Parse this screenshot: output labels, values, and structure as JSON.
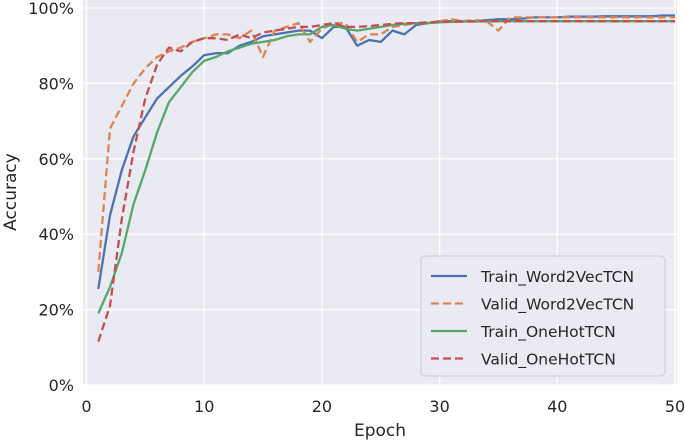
{
  "chart_data": {
    "type": "line",
    "xlabel": "Epoch",
    "ylabel": "Accuracy",
    "xlim": [
      0,
      50
    ],
    "ylim": [
      0,
      100
    ],
    "xticks": [
      0,
      10,
      20,
      30,
      40,
      50
    ],
    "yticks": [
      0,
      20,
      40,
      60,
      80,
      100
    ],
    "ytick_labels": [
      "0%",
      "20%",
      "40%",
      "60%",
      "80%",
      "100%"
    ],
    "grid": true,
    "background": "#eaeaf2",
    "legend_position": "bottom-right",
    "x": [
      1,
      2,
      3,
      4,
      5,
      6,
      7,
      8,
      9,
      10,
      11,
      12,
      13,
      14,
      15,
      16,
      17,
      18,
      19,
      20,
      21,
      22,
      23,
      24,
      25,
      26,
      27,
      28,
      29,
      30,
      31,
      32,
      33,
      34,
      35,
      36,
      37,
      38,
      39,
      40,
      41,
      42,
      43,
      44,
      45,
      46,
      47,
      48,
      49,
      50
    ],
    "series": [
      {
        "name": "Train_Word2VecTCN",
        "color": "#4c72b0",
        "dash": false,
        "values": [
          25.5,
          45,
          57,
          66,
          71,
          76,
          79,
          82,
          84.5,
          87.5,
          88,
          88,
          90,
          91,
          92.5,
          93,
          93.5,
          94,
          94,
          92,
          95,
          95,
          90,
          91.5,
          91,
          94,
          93,
          95.5,
          96,
          96.5,
          96.5,
          96.5,
          96.5,
          96.8,
          97,
          97,
          97.2,
          97.5,
          97.5,
          97.5,
          97.7,
          97.7,
          97.7,
          97.8,
          97.8,
          97.8,
          97.8,
          97.8,
          98,
          98
        ]
      },
      {
        "name": "Valid_Word2VecTCN",
        "color": "#dd8452",
        "dash": true,
        "values": [
          30,
          68,
          74,
          80,
          84,
          87,
          88.5,
          89.5,
          91,
          92,
          93,
          93,
          92,
          94,
          87,
          94,
          95,
          96,
          91,
          94.5,
          96,
          96,
          91,
          93,
          93,
          95,
          95.5,
          96,
          96,
          96.5,
          97,
          96.5,
          96.8,
          96.5,
          94,
          97.5,
          97.5,
          97.5,
          97.5,
          97.5,
          97.5,
          97.5,
          97.5,
          97.5,
          97.5,
          97.5,
          97.5,
          97.5,
          97.5,
          97.5
        ]
      },
      {
        "name": "Train_OneHotTCN",
        "color": "#55a868",
        "dash": false,
        "values": [
          19,
          26,
          35,
          48,
          57,
          67,
          75,
          79,
          83,
          86,
          87,
          88.5,
          89.5,
          90.5,
          91,
          91.5,
          92.5,
          93,
          93,
          95,
          95.5,
          94.5,
          94,
          94.5,
          95,
          95.5,
          95.8,
          96,
          96,
          96.2,
          96.3,
          96.4,
          96.4,
          96.5,
          96.5,
          96.5,
          96.5,
          96.5,
          96.5,
          96.5,
          96.5,
          96.5,
          96.5,
          96.5,
          96.5,
          96.5,
          96.5,
          96.5,
          96.5,
          96.5
        ]
      },
      {
        "name": "Valid_OneHotTCN",
        "color": "#c44e52",
        "dash": true,
        "values": [
          11.5,
          21,
          44,
          62,
          76,
          85,
          89.5,
          88.5,
          91,
          92,
          92,
          91.5,
          93,
          92,
          93.5,
          94,
          94.5,
          95,
          95,
          95.5,
          96,
          95,
          95,
          95.2,
          95.5,
          95.8,
          96,
          96,
          96.2,
          96.3,
          96.4,
          96.4,
          96.5,
          96.5,
          96.5,
          96.5,
          96.5,
          96.5,
          96.5,
          96.5,
          96.5,
          96.5,
          96.5,
          96.5,
          96.5,
          96.5,
          96.5,
          96.5,
          96.5,
          96.5
        ]
      }
    ]
  }
}
